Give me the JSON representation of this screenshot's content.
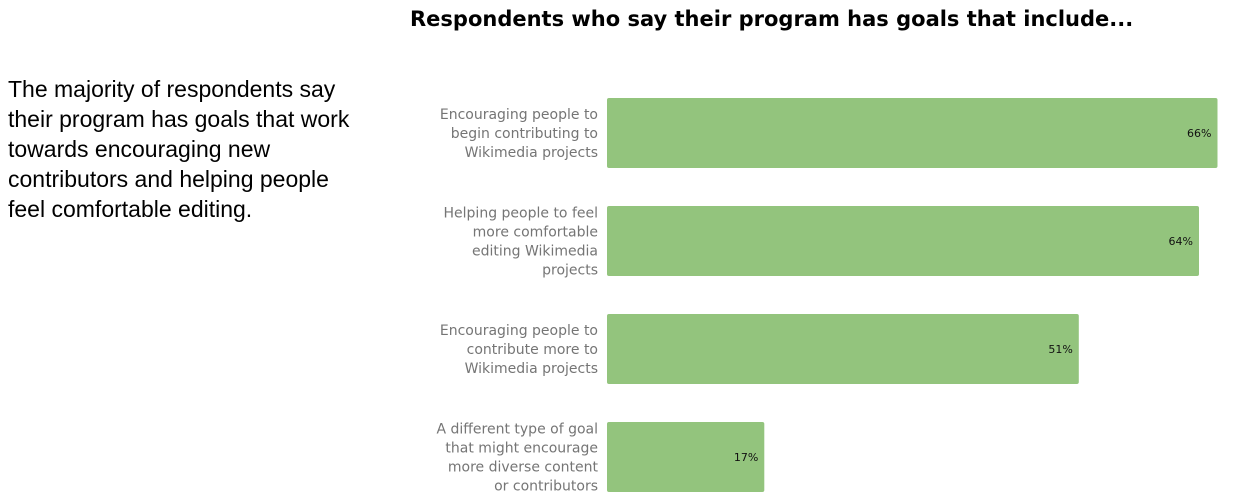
{
  "summary_text": "The majority of respondents say their program has goals that work towards encouraging new contributors and helping people feel comfortable editing.",
  "chart_data": {
    "type": "bar",
    "orientation": "horizontal",
    "title": "Respondents who say their program has goals that include...",
    "categories": [
      [
        "Encouraging people to",
        "begin contributing to",
        "Wikimedia projects"
      ],
      [
        "Helping people to feel",
        "more comfortable",
        "editing Wikimedia",
        "projects"
      ],
      [
        "Encouraging people to",
        "contribute more to",
        "Wikimedia projects"
      ],
      [
        "A different type of goal",
        "that might encourage",
        "more diverse content",
        "or contributors"
      ]
    ],
    "values": [
      66,
      64,
      51,
      17
    ],
    "value_labels": [
      "66%",
      "64%",
      "51%",
      "17%"
    ],
    "xlim": [
      0,
      100
    ],
    "grid": false,
    "legend": "none",
    "bar_color": "#93c47d"
  }
}
